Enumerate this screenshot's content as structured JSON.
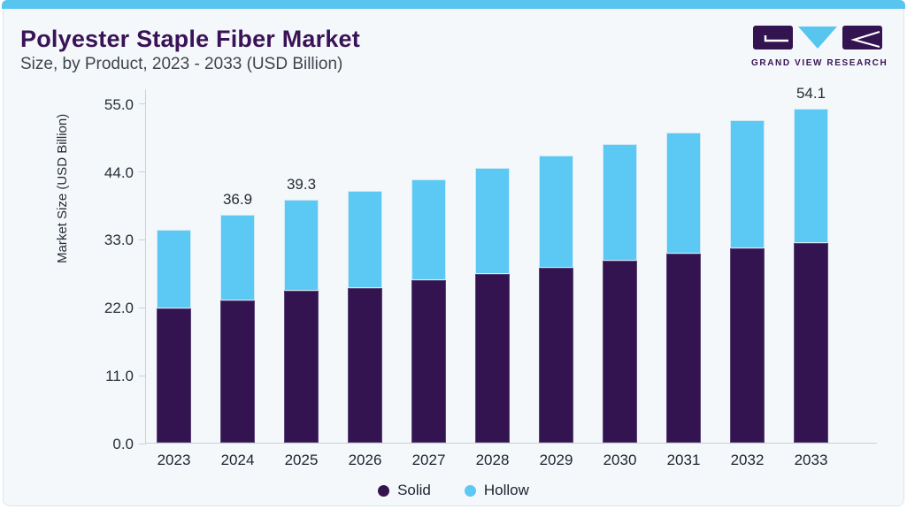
{
  "header": {
    "title": "Polyester Staple Fiber Market",
    "subtitle": "Size, by Product, 2023 - 2033 (USD Billion)"
  },
  "logo": {
    "brand": "GRAND VIEW RESEARCH"
  },
  "chart_data": {
    "type": "bar",
    "stacked": true,
    "title": "Polyester Staple Fiber Market Size, by Product, 2023 - 2033 (USD Billion)",
    "categories": [
      "2023",
      "2024",
      "2025",
      "2026",
      "2027",
      "2028",
      "2029",
      "2030",
      "2031",
      "2032",
      "2033"
    ],
    "series": [
      {
        "name": "Solid",
        "color": "#331450",
        "values": [
          21.7,
          23.1,
          24.6,
          25.1,
          26.4,
          27.4,
          28.4,
          29.5,
          30.6,
          31.5,
          32.3
        ]
      },
      {
        "name": "Hollow",
        "color": "#5bc9f3",
        "values": [
          12.8,
          13.8,
          14.7,
          15.7,
          16.3,
          17.1,
          18.1,
          18.9,
          19.7,
          20.7,
          21.8
        ]
      }
    ],
    "totals": [
      34.5,
      36.9,
      39.3,
      40.8,
      42.7,
      44.5,
      46.5,
      48.4,
      50.3,
      52.2,
      54.1
    ],
    "data_labels": [
      "",
      "36.9",
      "39.3",
      "",
      "",
      "",
      "",
      "",
      "",
      "",
      "54.1"
    ],
    "xlabel": "",
    "ylabel": "Market Size (USD Billion)",
    "ylim": [
      0,
      55
    ],
    "yticks": [
      "0.0",
      "11.0",
      "22.0",
      "33.0",
      "44.0",
      "55.0"
    ],
    "grid": false,
    "legend_position": "bottom"
  },
  "colors": {
    "accent_bar": "#58c5ef",
    "card_background": "#f4f8fb",
    "card_border": "#d9e6ef",
    "title_text": "#3a1356",
    "subtitle_text": "#40454d",
    "axis_text": "#272d36",
    "solid_series": "#331450",
    "hollow_series": "#5bc9f3"
  }
}
